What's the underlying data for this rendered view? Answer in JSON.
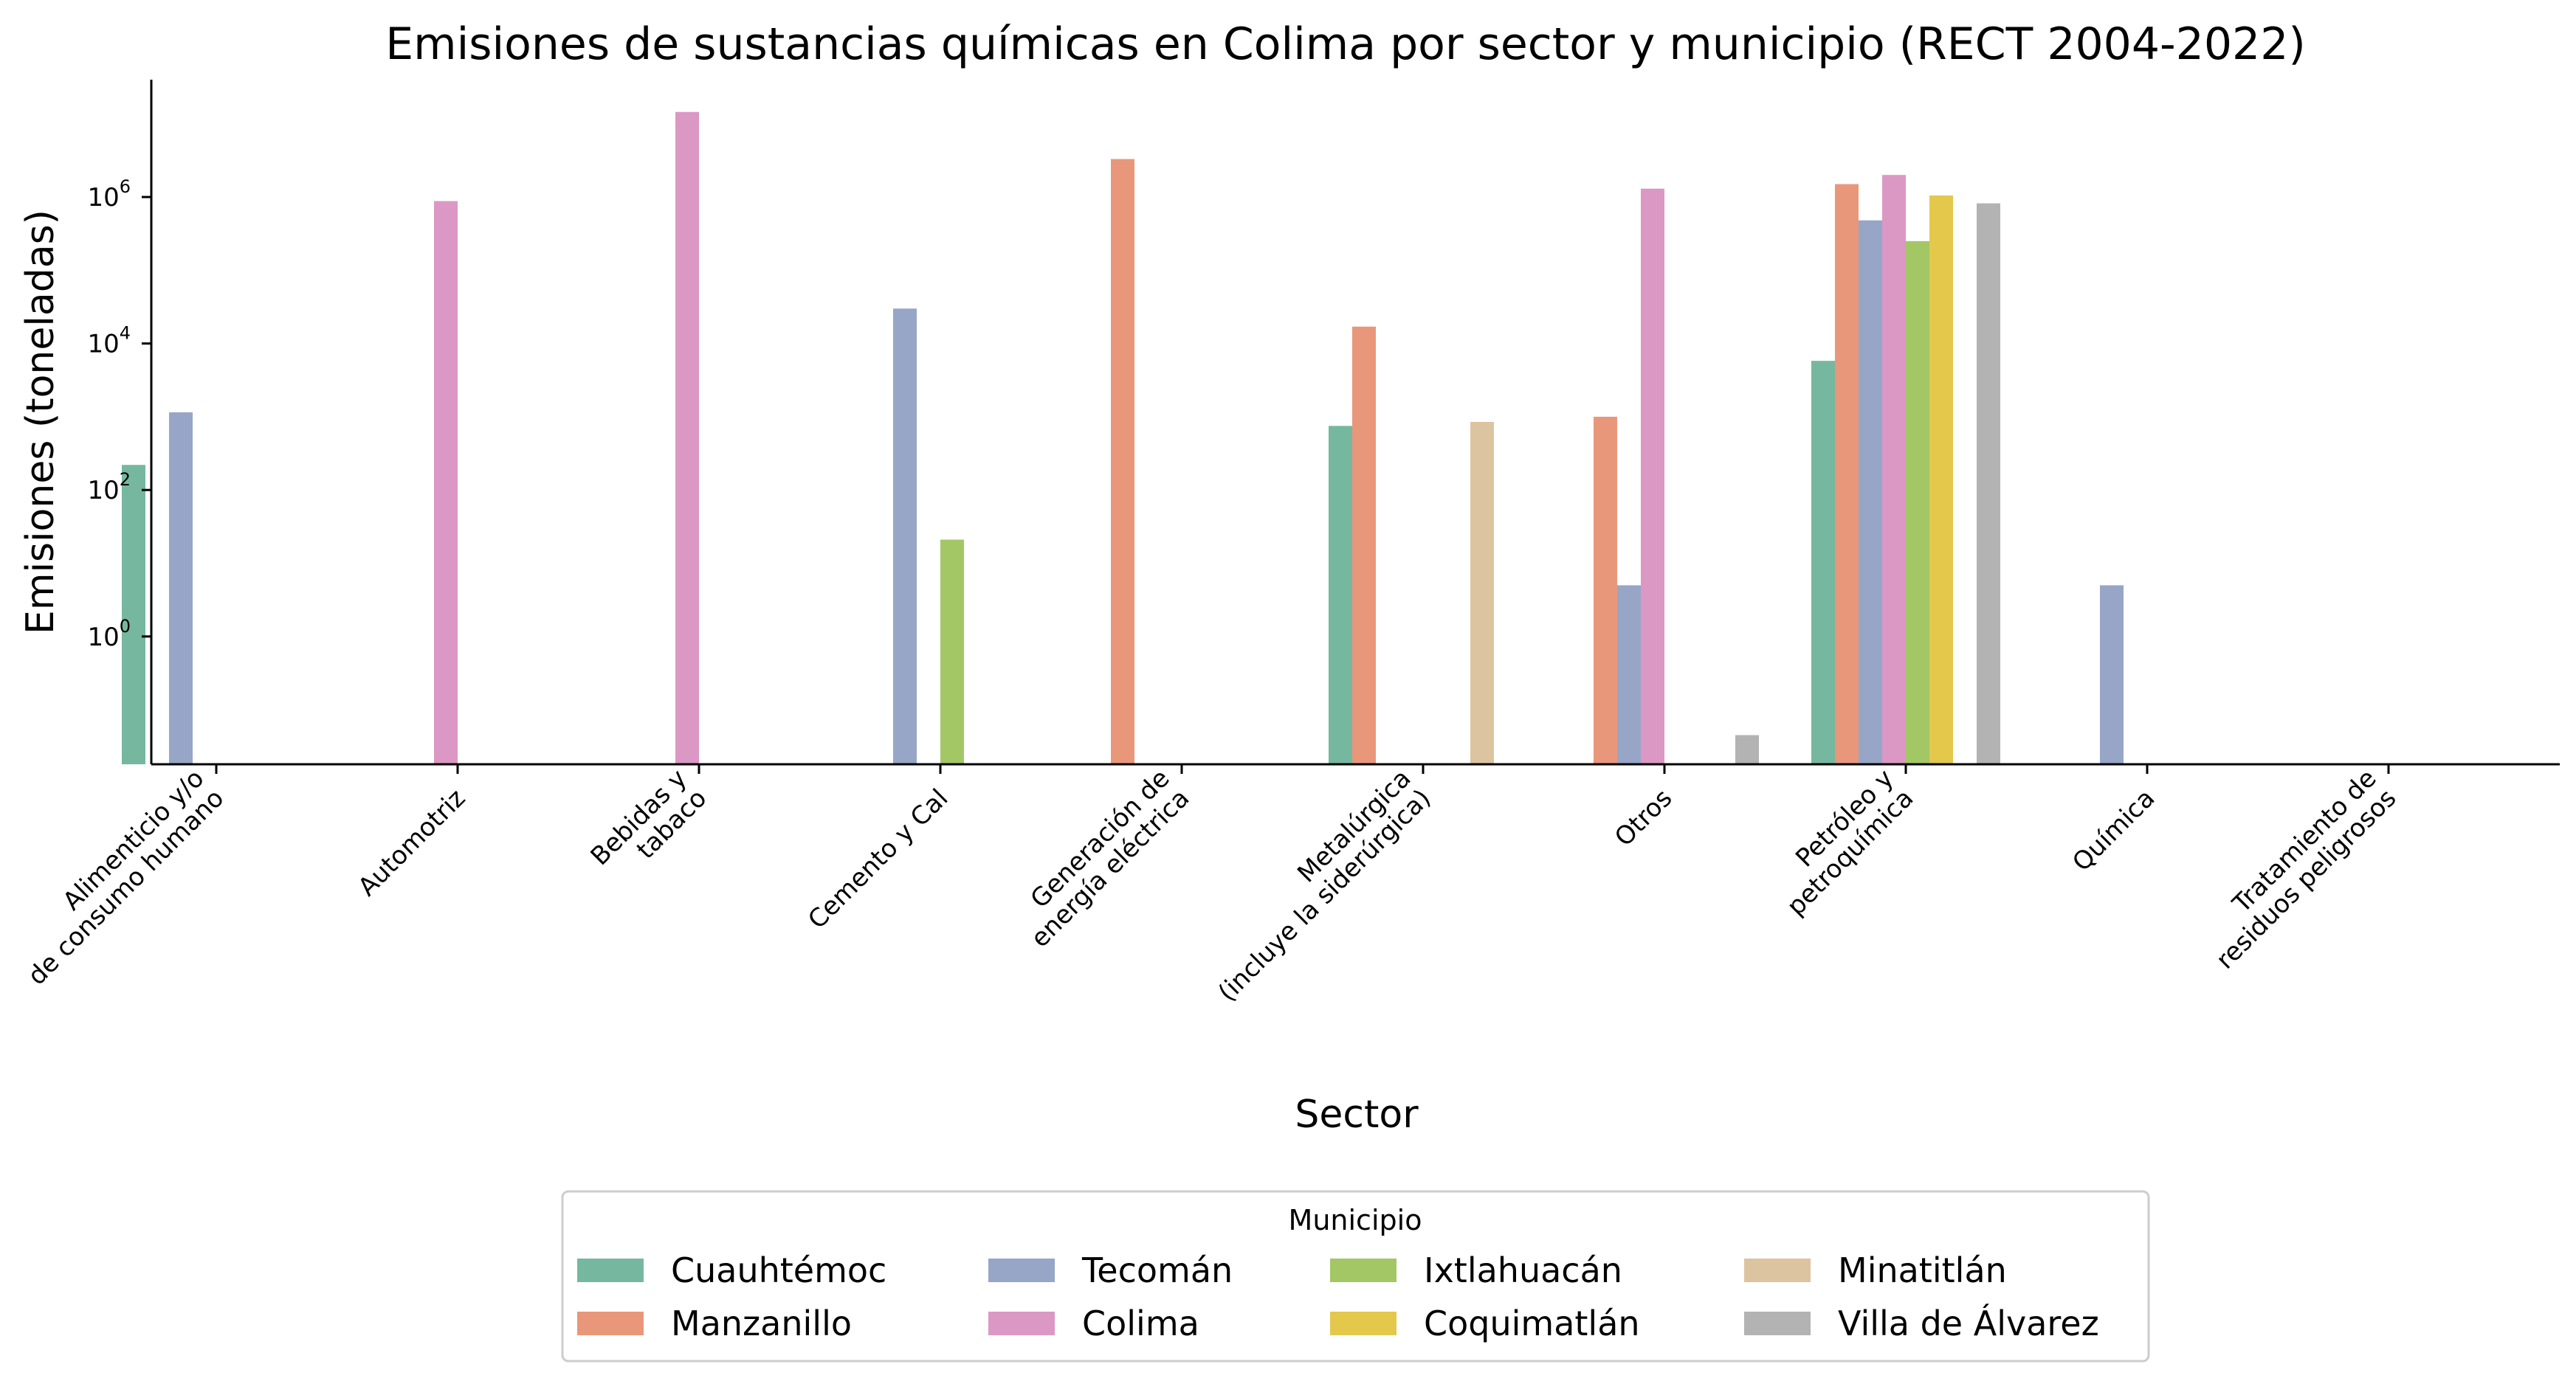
{
  "chart_data": {
    "type": "bar",
    "title": "Emisiones de sustancias químicas en Colima por sector y municipio (RECT 2004-2022)",
    "xlabel": "Sector",
    "ylabel": "Emisiones (toneladas)",
    "yscale": "log",
    "ylim": [
      0.018,
      40000000
    ],
    "y_ticks": [
      {
        "value": 1,
        "base": "10",
        "exp": "0"
      },
      {
        "value": 100,
        "base": "10",
        "exp": "2"
      },
      {
        "value": 10000,
        "base": "10",
        "exp": "4"
      },
      {
        "value": 1000000,
        "base": "10",
        "exp": "6"
      }
    ],
    "categories": [
      [
        "Alimenticio y/o",
        "de consumo humano"
      ],
      [
        "Automotriz"
      ],
      [
        "Bebidas y",
        "tabaco"
      ],
      [
        "Cemento y Cal"
      ],
      [
        "Generación de",
        "energía eléctrica"
      ],
      [
        "Metalúrgica",
        "(incluye la siderúrgica)"
      ],
      [
        "Otros"
      ],
      [
        "Petróleo y",
        "petroquímica"
      ],
      [
        "Química"
      ],
      [
        "Tratamiento de",
        "residuos peligrosos"
      ]
    ],
    "series": [
      {
        "name": "Cuauhtémoc",
        "color": "#76b7a0",
        "values": [
          220,
          null,
          null,
          null,
          null,
          750,
          null,
          5800,
          null,
          null
        ]
      },
      {
        "name": "Manzanillo",
        "color": "#e9977a",
        "values": [
          null,
          null,
          null,
          null,
          3300000,
          17000,
          1000,
          1500000,
          null,
          null
        ]
      },
      {
        "name": "Tecomán",
        "color": "#97a6c6",
        "values": [
          1150,
          null,
          null,
          30000,
          null,
          null,
          5,
          480000,
          5,
          null
        ]
      },
      {
        "name": "Colima",
        "color": "#db98c4",
        "values": [
          null,
          880000,
          14500000,
          null,
          null,
          null,
          1300000,
          2000000,
          null,
          null
        ]
      },
      {
        "name": "Ixtlahuacán",
        "color": "#a3c765",
        "values": [
          null,
          null,
          null,
          21,
          null,
          null,
          null,
          250000,
          null,
          null
        ]
      },
      {
        "name": "Coquimatlán",
        "color": "#e3c84c",
        "values": [
          null,
          null,
          null,
          null,
          null,
          null,
          null,
          1050000,
          null,
          null
        ]
      },
      {
        "name": "Minatitlán",
        "color": "#ddc4a0",
        "values": [
          null,
          null,
          null,
          null,
          null,
          850,
          null,
          null,
          null,
          null
        ]
      },
      {
        "name": "Villa de Álvarez",
        "color": "#b3b3b3",
        "values": [
          null,
          null,
          null,
          null,
          null,
          null,
          0.045,
          820000,
          null,
          null
        ]
      }
    ],
    "legend": {
      "title": "Municipio",
      "placement": "bottom-center",
      "columns": 4,
      "order": [
        "Cuauhtémoc",
        "Manzanillo",
        "Tecomán",
        "Colima",
        "Ixtlahuacán",
        "Coquimatlán",
        "Minatitlán",
        "Villa de Álvarez"
      ]
    },
    "grid": false
  }
}
